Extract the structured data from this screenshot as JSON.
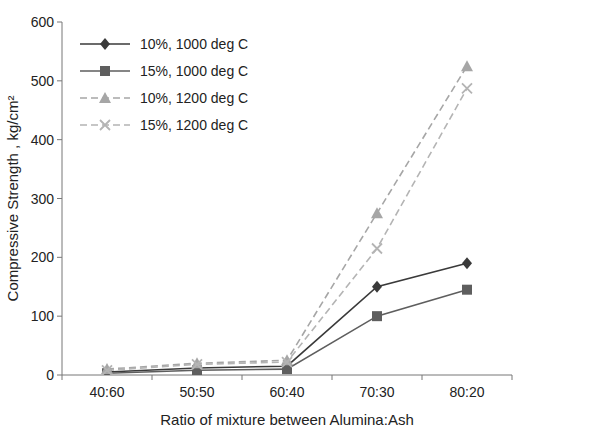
{
  "chart_data": {
    "type": "line",
    "x_label": "Ratio of mixture  between Alumina:Ash",
    "y_label": "Compressive Strength , kg/cm²",
    "categories": [
      "40:60",
      "50:50",
      "60:40",
      "70:30",
      "80:20"
    ],
    "ylim": [
      0,
      600
    ],
    "yticks": [
      0,
      100,
      200,
      300,
      400,
      500,
      600
    ],
    "grid": false,
    "legend": "upper left",
    "series": [
      {
        "name": "10%, 1000 deg C",
        "color": "#3a3a3a",
        "marker": "diamond",
        "line_style": "solid",
        "values": [
          5,
          12,
          15,
          150,
          190
        ]
      },
      {
        "name": "15%, 1000 deg C",
        "color": "#5e5e5e",
        "marker": "square",
        "line_style": "solid",
        "values": [
          3,
          8,
          10,
          100,
          145
        ]
      },
      {
        "name": "10%, 1200 deg C",
        "color": "#a6a6a6",
        "marker": "triangle",
        "line_style": "dashed",
        "values": [
          10,
          20,
          25,
          275,
          525
        ]
      },
      {
        "name": "15%, 1200 deg C",
        "color": "#b4b4b4",
        "marker": "x",
        "line_style": "dashed",
        "values": [
          8,
          18,
          22,
          215,
          487
        ]
      }
    ]
  }
}
